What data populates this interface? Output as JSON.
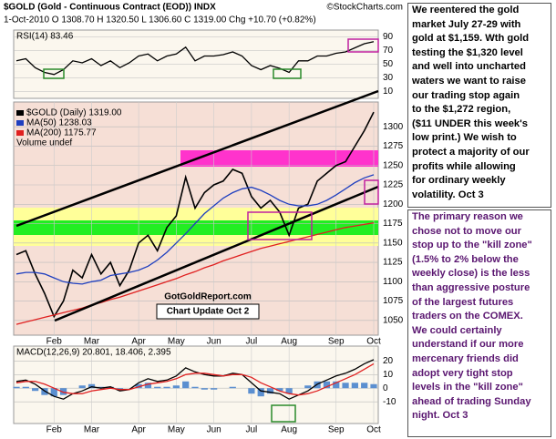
{
  "header": {
    "title": "$GOLD (Gold - Continuous Contract (EOD)) INDX",
    "credit": "©StockCharts.com",
    "quote": "1-Oct-2010   O 1308.70  H 1320.50  L 1306.60  C 1319.00  Chg +10.70 (+0.82%)"
  },
  "chart_data": [
    {
      "type": "line",
      "title": "RSI(14) 83.46",
      "ylim": [
        0,
        100
      ],
      "yticks": [
        10,
        30,
        50,
        70,
        90
      ],
      "grid": true,
      "series": [
        {
          "color": "#000000",
          "values": [
            55,
            58,
            45,
            38,
            35,
            42,
            55,
            52,
            58,
            48,
            55,
            45,
            52,
            62,
            65,
            55,
            62,
            65,
            75,
            55,
            62,
            62,
            64,
            68,
            62,
            48,
            42,
            48,
            44,
            38,
            55,
            55,
            62,
            62,
            66,
            68,
            74,
            80,
            83
          ]
        }
      ]
    },
    {
      "type": "line",
      "ylim": [
        1031,
        1332
      ],
      "yticks": [
        1050,
        1075,
        1100,
        1125,
        1150,
        1175,
        1200,
        1225,
        1250,
        1275,
        1300
      ],
      "grid": true,
      "categories": [
        null,
        null,
        null,
        null,
        "Feb",
        null,
        null,
        null,
        "Mar",
        null,
        null,
        null,
        null,
        "Apr",
        null,
        null,
        null,
        "May",
        null,
        null,
        null,
        "Jun",
        null,
        null,
        null,
        "Jul",
        null,
        null,
        null,
        "Aug",
        null,
        null,
        null,
        null,
        "Sep",
        null,
        null,
        null,
        "Oct"
      ],
      "series": [
        {
          "name": "$GOLD (Daily) 1319.00",
          "color": "#000000",
          "values": [
            1135,
            1140,
            1110,
            1085,
            1055,
            1075,
            1115,
            1105,
            1135,
            1110,
            1125,
            1095,
            1115,
            1150,
            1160,
            1140,
            1170,
            1185,
            1235,
            1195,
            1215,
            1225,
            1230,
            1245,
            1240,
            1210,
            1195,
            1205,
            1190,
            1160,
            1195,
            1200,
            1230,
            1240,
            1250,
            1255,
            1275,
            1295,
            1319
          ]
        },
        {
          "name": "MA(50) 1238.03",
          "color": "#1f3fbf",
          "values": [
            1110,
            1112,
            1112,
            1110,
            1105,
            1100,
            1098,
            1097,
            1100,
            1102,
            1108,
            1110,
            1112,
            1115,
            1120,
            1128,
            1138,
            1150,
            1162,
            1175,
            1188,
            1198,
            1208,
            1215,
            1220,
            1222,
            1218,
            1212,
            1205,
            1200,
            1198,
            1198,
            1200,
            1205,
            1212,
            1220,
            1228,
            1234,
            1238
          ]
        },
        {
          "name": "MA(200) 1175.77",
          "color": "#e02020",
          "values": [
            1045,
            1048,
            1051,
            1054,
            1057,
            1060,
            1063,
            1066,
            1070,
            1073,
            1077,
            1080,
            1084,
            1088,
            1092,
            1096,
            1100,
            1104,
            1109,
            1113,
            1118,
            1122,
            1127,
            1131,
            1135,
            1139,
            1143,
            1146,
            1149,
            1152,
            1155,
            1158,
            1161,
            1164,
            1167,
            1170,
            1172,
            1174,
            1176
          ]
        }
      ],
      "volume_legend": "Volume undef",
      "annotations": [
        "GotGoldReport.com",
        "Chart Update Oct 2"
      ]
    },
    {
      "type": "line",
      "title": "MACD(12,26,9) 20.801, 18.406, 2.395",
      "ylim": [
        -26,
        31
      ],
      "yticks": [
        -10,
        0,
        10,
        20
      ],
      "grid": true,
      "categories": [
        null,
        null,
        null,
        null,
        "Feb",
        null,
        null,
        null,
        "Mar",
        null,
        null,
        null,
        null,
        "Apr",
        null,
        null,
        null,
        "May",
        null,
        null,
        null,
        "Jun",
        null,
        null,
        null,
        "Jul",
        null,
        null,
        null,
        "Aug",
        null,
        null,
        null,
        null,
        "Sep",
        null,
        null,
        null,
        "Oct"
      ],
      "series": [
        {
          "type": "bar",
          "color": "#5b8fd0",
          "values": [
            1,
            1,
            -2,
            -5,
            -6,
            -5,
            0,
            2,
            3,
            1,
            1,
            -1,
            0,
            3,
            4,
            1,
            1,
            2,
            5,
            1,
            -1,
            -1,
            0,
            1,
            0,
            -4,
            -6,
            -4,
            -2,
            -4,
            0,
            2,
            5,
            5,
            5,
            4,
            4,
            4,
            3
          ]
        },
        {
          "color": "#000000",
          "values": [
            5,
            6,
            3,
            -2,
            -6,
            -8,
            -4,
            -2,
            1,
            0,
            1,
            -2,
            -1,
            4,
            7,
            5,
            6,
            9,
            15,
            12,
            10,
            9,
            9,
            11,
            10,
            4,
            -2,
            -3,
            -4,
            -8,
            -5,
            -2,
            3,
            6,
            9,
            11,
            14,
            18,
            21
          ]
        },
        {
          "color": "#e02020",
          "values": [
            4,
            5,
            5,
            3,
            0,
            -3,
            -4,
            -4,
            -2,
            -1,
            0,
            -1,
            -1,
            1,
            3,
            4,
            5,
            7,
            10,
            11,
            11,
            10,
            9,
            10,
            10,
            8,
            4,
            1,
            -2,
            -4,
            -5,
            -4,
            -2,
            1,
            4,
            7,
            10,
            14,
            18
          ]
        }
      ]
    }
  ],
  "notes": [
    {
      "lines": [
        "We reentered the gold",
        "market July 27-29 with",
        "gold at $1,159.  Wth gold",
        "testing the $1,320 level",
        "and well into uncharted",
        "waters we want to raise",
        "our trading stop again",
        "to the $1,272 region,",
        "($11 UNDER this week's",
        "low print.) We wish to",
        "protect a majority of our",
        "profits while allowing",
        "for ordinary weekly",
        "volatility. Oct 3"
      ]
    },
    {
      "lines": [
        "The primary reason we",
        "chose not to move our",
        "stop up to the \"kill zone\"",
        "(1.5% to 2% below the",
        "weekly close) is the less",
        "than aggressive posture",
        "of the largest futures",
        "traders on the COMEX.",
        "We could certainly",
        "understand if our more",
        "mercenary friends did",
        "adopt very tight stop",
        "levels in the \"kill zone\"",
        "ahead of trading Sunday",
        "night. Oct 3"
      ]
    }
  ]
}
